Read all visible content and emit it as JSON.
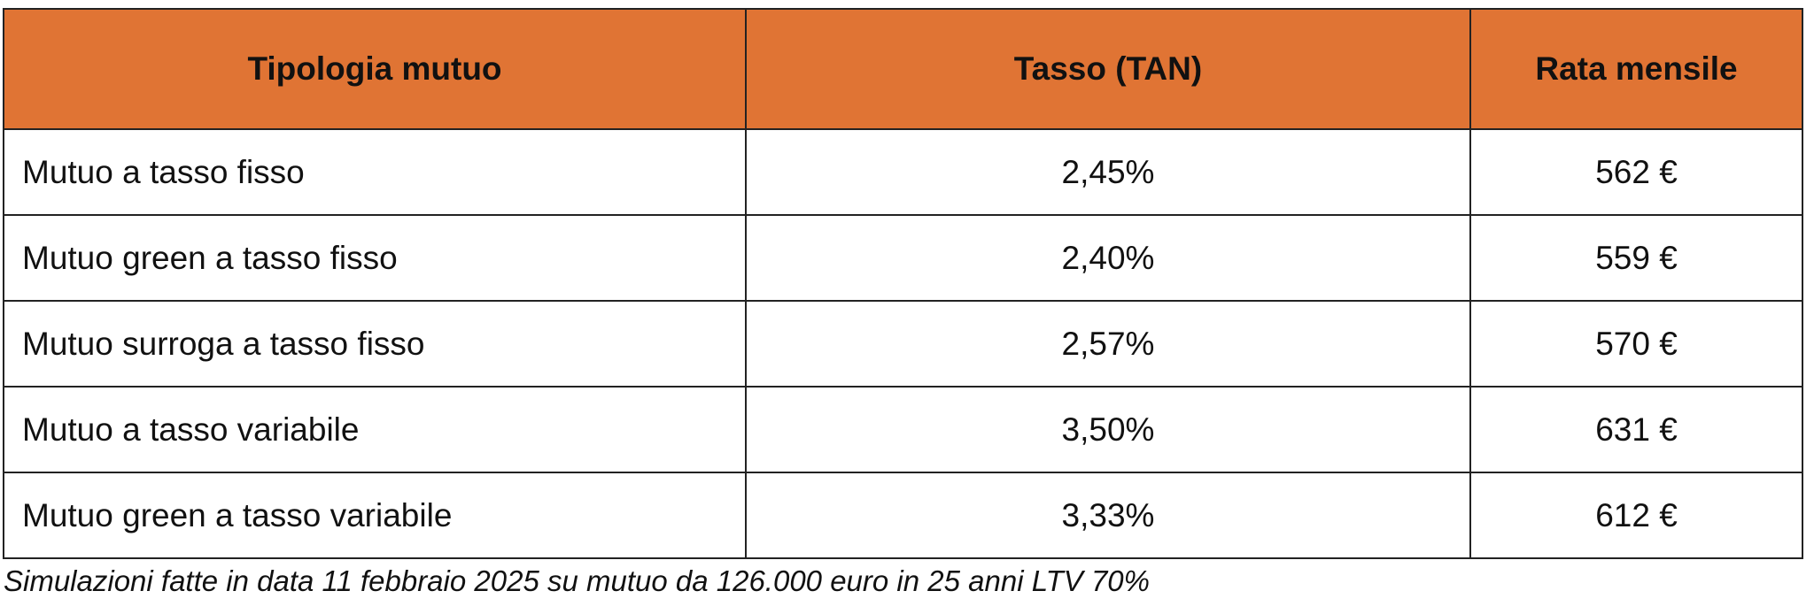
{
  "table": {
    "columns": [
      "Tipologia mutuo",
      "Tasso (TAN)",
      "Rata mensile"
    ],
    "rows": [
      [
        "Mutuo a tasso fisso",
        "2,45%",
        "562 €"
      ],
      [
        "Mutuo green a tasso fisso",
        "2,40%",
        "559 €"
      ],
      [
        "Mutuo surroga a tasso fisso",
        "2,57%",
        "570 €"
      ],
      [
        "Mutuo a tasso variabile",
        "3,50%",
        "631 €"
      ],
      [
        "Mutuo green a tasso variabile",
        "3,33%",
        "612 €"
      ]
    ]
  },
  "footnote": "Simulazioni fatte in data 11 febbraio 2025 su mutuo da 126.000 euro in 25 anni LTV 70%"
}
